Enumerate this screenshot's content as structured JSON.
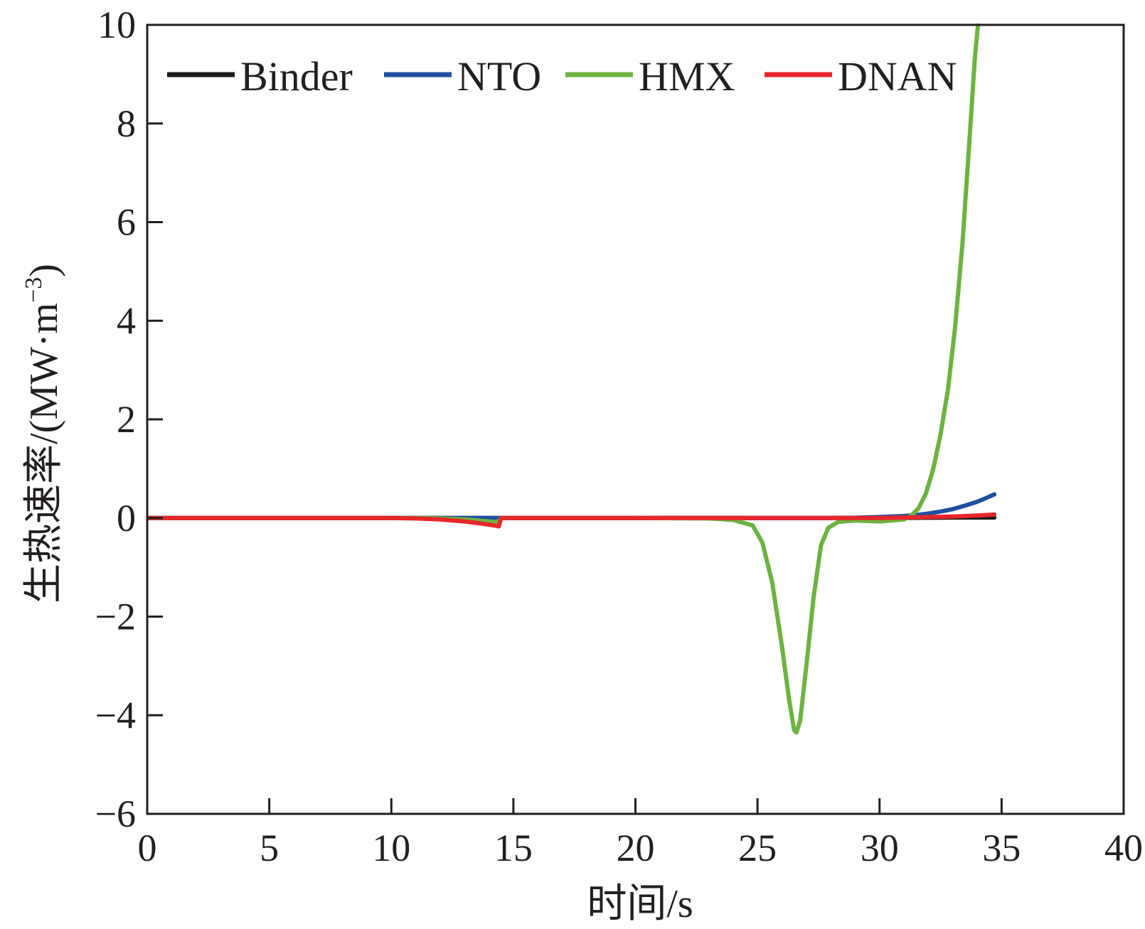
{
  "chart_data": {
    "type": "line",
    "title": "",
    "xlabel": "时间/s",
    "ylabel_main": "生热速率/(MW·m",
    "ylabel_sup": "−3",
    "ylabel_close": ")",
    "xlim": [
      0,
      40
    ],
    "ylim": [
      -6,
      10
    ],
    "xticks": [
      0,
      5,
      10,
      15,
      20,
      25,
      30,
      35,
      40
    ],
    "yticks": [
      -6,
      -4,
      -2,
      0,
      2,
      4,
      6,
      8,
      10
    ],
    "xtick_labels": [
      "0",
      "5",
      "10",
      "15",
      "20",
      "25",
      "30",
      "35",
      "40"
    ],
    "ytick_labels": [
      "−6",
      "−4",
      "−2",
      "0",
      "2",
      "4",
      "6",
      "8",
      "10"
    ],
    "grid": false,
    "legend_position": "top-left",
    "series": [
      {
        "name": "Binder",
        "color": "#1a1a1a",
        "x": [
          0,
          10,
          20,
          28,
          30,
          32,
          33,
          34,
          34.7
        ],
        "y": [
          0,
          0,
          0,
          0,
          0,
          0.005,
          0.01,
          0.01,
          0.01
        ]
      },
      {
        "name": "NTO",
        "color": "#1f4fa0",
        "x": [
          0,
          10,
          20,
          28,
          29,
          30,
          31,
          31.5,
          32,
          32.5,
          33,
          33.5,
          34,
          34.3,
          34.7
        ],
        "y": [
          0,
          0,
          0,
          0,
          0.005,
          0.02,
          0.04,
          0.06,
          0.09,
          0.13,
          0.18,
          0.25,
          0.33,
          0.39,
          0.48
        ]
      },
      {
        "name": "HMX",
        "color": "#6cb33f",
        "x": [
          0,
          11,
          12,
          13,
          13.8,
          14.2,
          14.4,
          14.5,
          20,
          23,
          24,
          24.8,
          25.2,
          25.6,
          26,
          26.3,
          26.5,
          26.6,
          26.75,
          27,
          27.3,
          27.6,
          27.9,
          28.3,
          29,
          30,
          31,
          31.3,
          31.6,
          31.9,
          32.2,
          32.5,
          32.8,
          33.1,
          33.4,
          33.7,
          33.9,
          34.05
        ],
        "y": [
          0,
          0,
          -0.01,
          -0.03,
          -0.06,
          -0.08,
          -0.07,
          0,
          0,
          -0.01,
          -0.04,
          -0.15,
          -0.5,
          -1.3,
          -2.6,
          -3.7,
          -4.3,
          -4.35,
          -4.1,
          -3.0,
          -1.6,
          -0.55,
          -0.2,
          -0.08,
          -0.05,
          -0.07,
          -0.03,
          0.05,
          0.2,
          0.5,
          1.0,
          1.7,
          2.6,
          3.9,
          5.6,
          7.8,
          9.3,
          10.1
        ]
      },
      {
        "name": "DNAN",
        "color": "#e8262b",
        "x": [
          0,
          10,
          11,
          12,
          13,
          13.8,
          14.2,
          14.4,
          14.5,
          20,
          25,
          28,
          30,
          31,
          32,
          33,
          34,
          34.7
        ],
        "y": [
          0,
          0,
          -0.01,
          -0.03,
          -0.07,
          -0.12,
          -0.15,
          -0.17,
          0,
          0,
          0,
          0,
          0,
          0.01,
          0.02,
          0.03,
          0.05,
          0.07
        ]
      }
    ]
  }
}
